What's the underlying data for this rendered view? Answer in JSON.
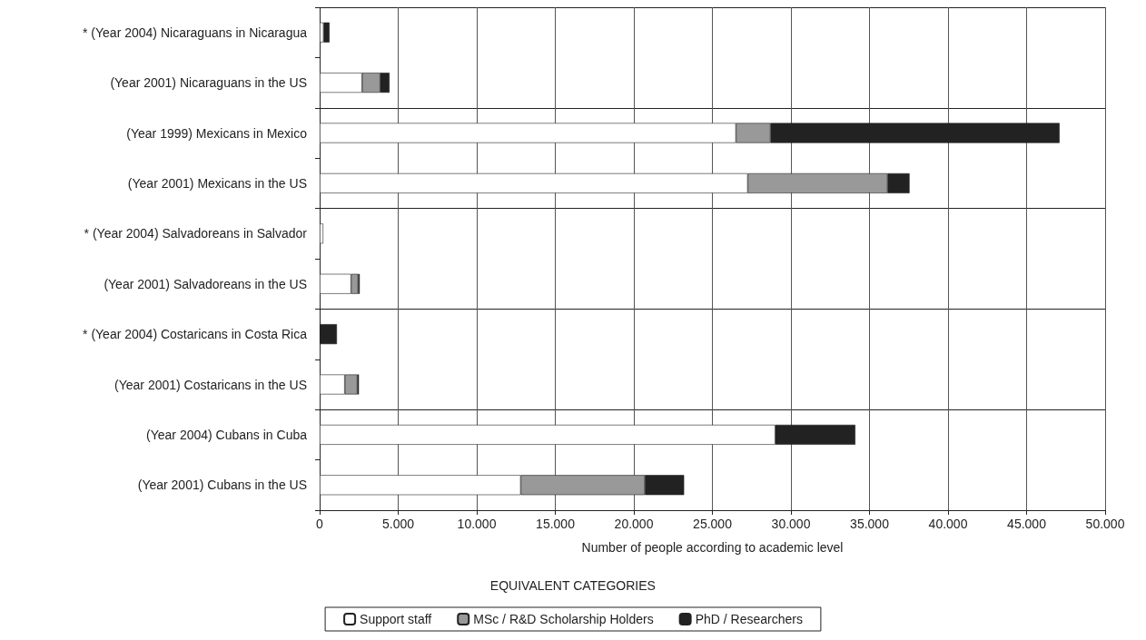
{
  "chart_data": {
    "type": "bar",
    "orientation": "horizontal",
    "stacked": true,
    "categories": [
      "* (Year 2004) Nicaraguans in Nicaragua",
      "(Year 2001) Nicaraguans in the US",
      "(Year 1999) Mexicans in Mexico",
      "(Year 2001) Mexicans in the US",
      "* (Year 2004) Salvadoreans in Salvador",
      "(Year 2001) Salvadoreans in the US",
      "* (Year 2004) Costaricans in Costa Rica",
      "(Year 2001) Costaricans in the US",
      "(Year 2004) Cubans in Cuba",
      "(Year 2001) Cubans in the US"
    ],
    "series": [
      {
        "name": "Support staff",
        "color": "#ffffff",
        "values": [
          250,
          2700,
          26500,
          27250,
          230,
          2000,
          null,
          1600,
          29000,
          12800
        ]
      },
      {
        "name": "MSc / R&D Scholarship Holders",
        "color": "#999999",
        "values": [
          null,
          1150,
          2200,
          8900,
          null,
          450,
          null,
          800,
          null,
          7900
        ]
      },
      {
        "name": "PhD / Researchers",
        "color": "#222222",
        "values": [
          380,
          600,
          18400,
          1400,
          null,
          100,
          1100,
          100,
          5100,
          2500
        ]
      }
    ],
    "xlabel": "Number of people according to academic level",
    "legend_title": "EQUIVALENT CATEGORIES",
    "xlim": [
      0,
      50000
    ],
    "xticks": [
      0,
      {
        "value": 5000,
        "label": "5.000"
      },
      {
        "value": 10000,
        "label": "10.000"
      },
      {
        "value": 15000,
        "label": "15.000"
      },
      {
        "value": 20000,
        "label": "20.000"
      },
      {
        "value": 25000,
        "label": "25.000"
      },
      {
        "value": 30000,
        "label": "30.000"
      },
      {
        "value": 35000,
        "label": "35.000"
      },
      {
        "value": 40000,
        "label": "40.000"
      },
      {
        "value": 45000,
        "label": "45.000"
      },
      {
        "value": 50000,
        "label": "50.000"
      }
    ],
    "grid": true,
    "legend": "bottom"
  }
}
